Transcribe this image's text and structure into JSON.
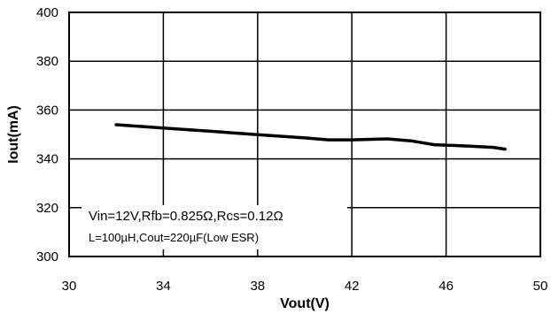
{
  "chart_data": {
    "type": "line",
    "xlabel": "Vout(V)",
    "ylabel": "Iout(mA)",
    "xlim": [
      30,
      50
    ],
    "ylim": [
      300,
      400
    ],
    "xticks": [
      30,
      34,
      38,
      42,
      46,
      50
    ],
    "yticks": [
      300,
      320,
      340,
      360,
      380,
      400
    ],
    "grid": true,
    "series": [
      {
        "color": "#000000",
        "points": [
          [
            32.0,
            354.0
          ],
          [
            34.0,
            352.6
          ],
          [
            36.0,
            351.3
          ],
          [
            38.0,
            349.9
          ],
          [
            40.0,
            348.6
          ],
          [
            41.0,
            347.8
          ],
          [
            42.0,
            347.8
          ],
          [
            43.5,
            348.2
          ],
          [
            44.5,
            347.4
          ],
          [
            45.5,
            345.8
          ],
          [
            47.0,
            345.2
          ],
          [
            48.0,
            344.7
          ],
          [
            48.5,
            344.0
          ]
        ]
      }
    ],
    "annotations": [
      "Vin=12V,Rfb=0.825Ω,Rcs=0.12Ω",
      "L=100µH,Cout=220µF(Low ESR)"
    ]
  }
}
